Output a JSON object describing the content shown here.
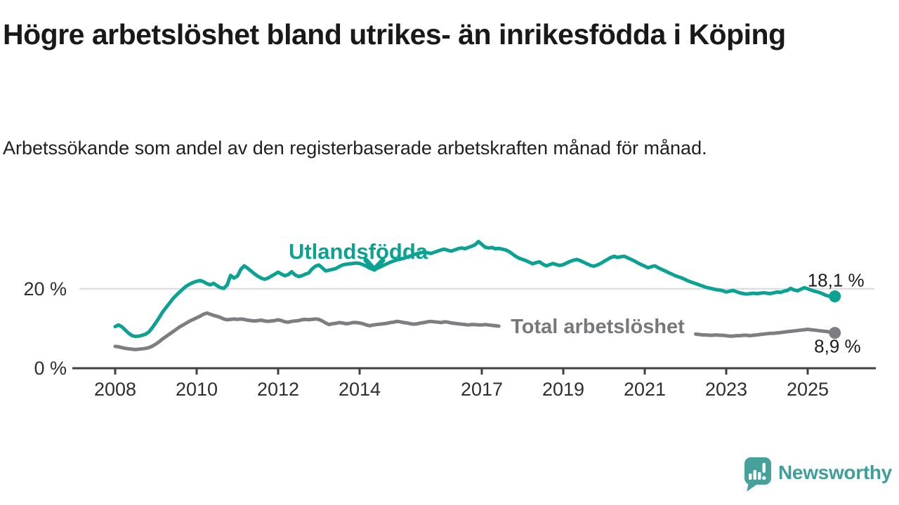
{
  "title": "Högre arbetslöshet bland utrikes- än inrikesfödda i Köping",
  "subtitle": "Arbetssökande som andel av den registerbaserade arbetskraften månad för månad.",
  "branding": {
    "name": "Newsworthy"
  },
  "colors": {
    "foreign_line": "#0ca293",
    "total_line": "#7d7e81",
    "total_label": "#77787b",
    "axis": "#404040",
    "tick_text": "#2f2f2f",
    "grid": "#d9d9d9",
    "value_label_text": "#1c1c1c",
    "brand_teal": "#3f9e99",
    "logo_bubble": "#47a19b"
  },
  "chart_data": {
    "type": "line",
    "title": "Högre arbetslöshet bland utrikes- än inrikesfödda i Köping",
    "subtitle": "Arbetssökande som andel av den registerbaserade arbetskraften månad för månad.",
    "unit": "percent",
    "x_axis": {
      "tick_years": [
        2008,
        2010,
        2012,
        2014,
        2017,
        2019,
        2021,
        2023,
        2025
      ],
      "grid": false
    },
    "y_axis": {
      "range": [
        0,
        33
      ],
      "ticks": [
        {
          "value": 0,
          "label": "0 %",
          "gridline": false
        },
        {
          "value": 20,
          "label": "20 %",
          "gridline": true
        }
      ]
    },
    "legend_position": "inline-labels",
    "series": [
      {
        "name": "Utlandsfödda",
        "color": "#0ca293",
        "end_label": "18,1 %",
        "end_value": 18.1,
        "segments": [
          {
            "start": {
              "year": 2008,
              "month": 1
            },
            "step_months": 1,
            "values": [
              10.5,
              10.9,
              10.4,
              9.6,
              8.8,
              8.2,
              8.0,
              8.1,
              8.3,
              8.6,
              9.2,
              10.3,
              11.5,
              12.8,
              14.2,
              15.3,
              16.4,
              17.5,
              18.4,
              19.2,
              20.0,
              20.7,
              21.2,
              21.6,
              21.9,
              22.1,
              21.8,
              21.3,
              21.0,
              21.4,
              20.8,
              20.3,
              20.1,
              21.0,
              23.4,
              22.7,
              23.2,
              24.9,
              25.8,
              25.2,
              24.5,
              23.8,
              23.2,
              22.7,
              22.4,
              22.7,
              23.2,
              23.7,
              24.2,
              23.7,
              23.3,
              23.6,
              24.3,
              23.5,
              23.1,
              23.3,
              23.7,
              24.0,
              25.0,
              25.7,
              26.0,
              25.3,
              24.5,
              24.7,
              24.9,
              25.1,
              25.6,
              26.0,
              26.2,
              26.3,
              26.4,
              26.5,
              26.4,
              26.1,
              25.7,
              25.2,
              24.9,
              25.1,
              25.5,
              25.9,
              26.3,
              26.7,
              27.0,
              27.3,
              27.5,
              27.7,
              28.0,
              28.3,
              28.6,
              28.9,
              29.1,
              29.3,
              29.1,
              28.9,
              29.2,
              29.5,
              29.8,
              30.0,
              29.7,
              29.5,
              29.8,
              30.1,
              30.3,
              30.1,
              30.4,
              30.7,
              31.1,
              31.9,
              31.2,
              30.5,
              30.3,
              30.4,
              30.1,
              30.2,
              30.0,
              29.8,
              29.4,
              28.8,
              28.2,
              27.7,
              27.4,
              27.1,
              26.7,
              26.3,
              26.6,
              26.8,
              26.2,
              25.8,
              26.1,
              26.4,
              26.1,
              25.9,
              26.1,
              26.5,
              26.9,
              27.2,
              27.4,
              27.1,
              26.7,
              26.3,
              25.9,
              25.7,
              26.0,
              26.4,
              26.9,
              27.4,
              27.9,
              28.2,
              27.9,
              28.1,
              28.2,
              27.8,
              27.4,
              27.0,
              26.5,
              26.1,
              25.7,
              25.3,
              25.6,
              25.8,
              25.3,
              24.9,
              24.5,
              24.1,
              23.7,
              23.3,
              23.0,
              22.7,
              22.3,
              21.9,
              21.6,
              21.3,
              21.0,
              20.7,
              20.4,
              20.2,
              20.0,
              19.8,
              19.7,
              19.5,
              19.2,
              19.4,
              19.6,
              19.3,
              19.0,
              18.8,
              18.7,
              18.8,
              18.9,
              18.8,
              18.9,
              19.0,
              18.9,
              18.8,
              19.0,
              19.2,
              19.1,
              19.4,
              19.6,
              20.1,
              19.7,
              19.5,
              19.9,
              20.3,
              20.0,
              19.7,
              19.4,
              19.2,
              18.9,
              18.5,
              18.2,
              18.0,
              18.1
            ]
          }
        ]
      },
      {
        "name": "Total arbetslöshet",
        "color": "#7d7e81",
        "end_label": "8,9 %",
        "end_value": 8.9,
        "segments": [
          {
            "start": {
              "year": 2008,
              "month": 1
            },
            "step_months": 1,
            "values": [
              5.5,
              5.4,
              5.2,
              5.0,
              4.9,
              4.8,
              4.7,
              4.8,
              4.9,
              5.0,
              5.2,
              5.6,
              6.1,
              6.7,
              7.4,
              8.0,
              8.6,
              9.2,
              9.8,
              10.4,
              10.9,
              11.4,
              11.9,
              12.3,
              12.7,
              13.1,
              13.6,
              13.9,
              13.6,
              13.3,
              13.1,
              12.8,
              12.4,
              12.2,
              12.3,
              12.4,
              12.3,
              12.4,
              12.3,
              12.1,
              12.0,
              11.9,
              12.0,
              12.1,
              11.9,
              11.8,
              11.9,
              12.0,
              12.2,
              12.0,
              11.7,
              11.6,
              11.8,
              11.9,
              12.0,
              12.2,
              12.3,
              12.2,
              12.3,
              12.4,
              12.3,
              11.9,
              11.4,
              11.0,
              11.2,
              11.3,
              11.5,
              11.4,
              11.2,
              11.3,
              11.5,
              11.5,
              11.4,
              11.2,
              10.9,
              10.7,
              10.9,
              11.0,
              11.1,
              11.2,
              11.3,
              11.5,
              11.6,
              11.8,
              11.7,
              11.5,
              11.4,
              11.2,
              11.1,
              11.2,
              11.4,
              11.5,
              11.7,
              11.8,
              11.7,
              11.6,
              11.5,
              11.7,
              11.6,
              11.4,
              11.3,
              11.2,
              11.1,
              11.0,
              10.9,
              11.0,
              11.0,
              10.9,
              10.9,
              11.0,
              10.9,
              10.8,
              10.7,
              10.6
            ]
          },
          {
            "start": {
              "year": 2022,
              "month": 4
            },
            "step_months": 1,
            "values": [
              8.6,
              8.5,
              8.4,
              8.4,
              8.3,
              8.3,
              8.4,
              8.3,
              8.3,
              8.2,
              8.1,
              8.1,
              8.2,
              8.2,
              8.3,
              8.3,
              8.2,
              8.3,
              8.4,
              8.5,
              8.6,
              8.7,
              8.8,
              8.8,
              8.9,
              9.0,
              9.1,
              9.2,
              9.3,
              9.4,
              9.5,
              9.6,
              9.7,
              9.8,
              9.7,
              9.6,
              9.5,
              9.4,
              9.3,
              9.2,
              9.0,
              8.9
            ]
          }
        ]
      }
    ]
  }
}
